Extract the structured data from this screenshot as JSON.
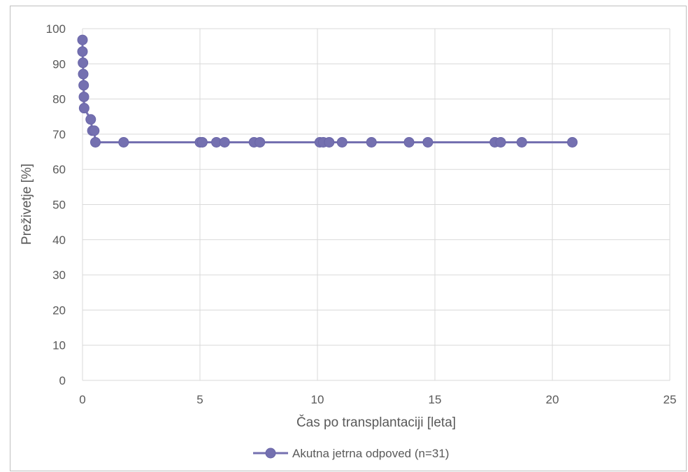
{
  "chart_data": {
    "type": "line",
    "title": "",
    "xlabel": "Čas po transplantaciji [leta]",
    "ylabel": "Preživetje [%]",
    "xlim": [
      0,
      25
    ],
    "ylim": [
      0,
      100
    ],
    "xticks": [
      0,
      5,
      10,
      15,
      20,
      25
    ],
    "yticks": [
      0,
      10,
      20,
      30,
      40,
      50,
      60,
      70,
      80,
      90,
      100
    ],
    "grid": true,
    "legend_position": "bottom",
    "series": [
      {
        "name": "Akutna jetrna odpoved (n=31)",
        "color": "#7470b0",
        "x": [
          0.0,
          0.0,
          0.02,
          0.03,
          0.05,
          0.06,
          0.07,
          0.35,
          0.42,
          0.5,
          0.55,
          1.75,
          5.0,
          5.1,
          5.7,
          6.05,
          7.3,
          7.55,
          10.1,
          10.25,
          10.5,
          11.05,
          12.3,
          13.9,
          14.7,
          17.55,
          17.8,
          18.7,
          20.85
        ],
        "y": [
          96.8,
          93.5,
          90.3,
          87.1,
          83.9,
          80.6,
          77.4,
          74.2,
          71.0,
          71.0,
          67.7,
          67.7,
          67.7,
          67.7,
          67.7,
          67.7,
          67.7,
          67.7,
          67.7,
          67.7,
          67.7,
          67.7,
          67.7,
          67.7,
          67.7,
          67.7,
          67.7,
          67.7,
          67.7
        ]
      }
    ]
  }
}
